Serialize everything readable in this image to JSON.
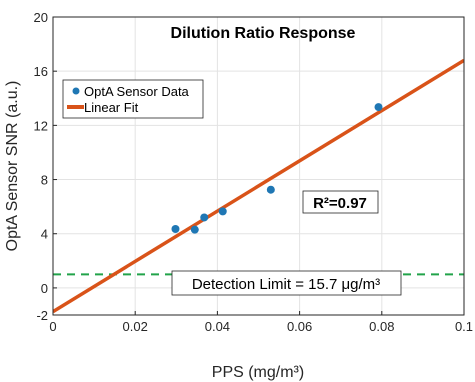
{
  "chart_data": {
    "type": "scatter",
    "title": "Dilution Ratio Response",
    "xlabel": "PPS (mg/m³)",
    "ylabel": "OptA Sensor SNR (a.u.)",
    "xlim": [
      0,
      0.1
    ],
    "ylim": [
      -2,
      20
    ],
    "x_ticks": [
      0,
      0.02,
      0.04,
      0.06,
      0.08,
      0.1
    ],
    "x_tick_labels": [
      "0",
      "0.02",
      "0.04",
      "0.06",
      "0.08",
      "0.1"
    ],
    "y_ticks": [
      -2,
      0,
      4,
      8,
      12,
      16,
      20
    ],
    "y_tick_labels": [
      "-2",
      "0",
      "4",
      "8",
      "12",
      "16",
      "20"
    ],
    "grid": true,
    "legend_position": "upper-left",
    "series": [
      {
        "name": "OptA Sensor Data",
        "kind": "scatter",
        "color": "#1f77b4",
        "x": [
          0.0298,
          0.0345,
          0.0368,
          0.0413,
          0.053,
          0.0792
        ],
        "y": [
          4.35,
          4.3,
          5.2,
          5.65,
          7.25,
          13.35
        ]
      },
      {
        "name": "Linear Fit",
        "kind": "line",
        "color": "#d95319",
        "x": [
          0,
          0.1
        ],
        "y": [
          -1.75,
          16.8
        ]
      },
      {
        "name": "Detection Limit",
        "kind": "hline",
        "color": "#22a34a",
        "style": "dashed",
        "y": 1.0
      }
    ],
    "annotations": {
      "r_squared": "R²=0.97",
      "detection_limit": "Detection Limit = 15.7 μg/m³"
    }
  }
}
